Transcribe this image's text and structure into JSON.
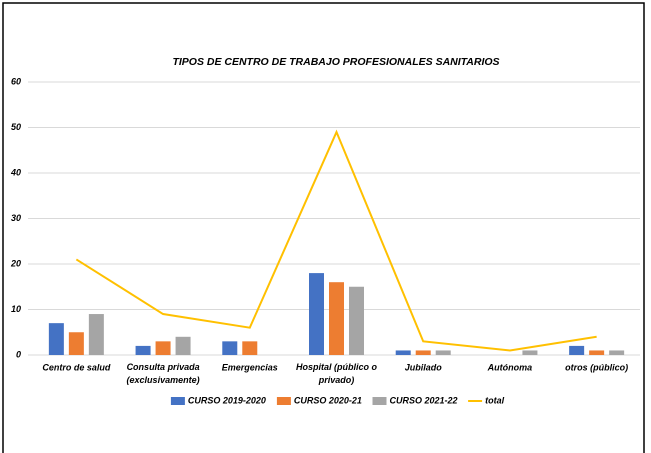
{
  "chart_data": {
    "type": "bar",
    "title": "TIPOS DE CENTRO DE TRABAJO PROFESIONALES SANITARIOS",
    "categories": [
      "Centro de salud",
      "Consulta privada (exclusivamente)",
      "Emergencias",
      "Hospital (público o privado)",
      "Jubilado",
      "Autónoma",
      "otros (público)"
    ],
    "series": [
      {
        "name": "CURSO 2019-2020",
        "color": "#4472c4",
        "values": [
          7,
          2,
          3,
          18,
          1,
          0,
          2
        ]
      },
      {
        "name": "CURSO 2020-21",
        "color": "#ed7d31",
        "values": [
          5,
          3,
          3,
          16,
          1,
          0,
          1
        ]
      },
      {
        "name": "CURSO 2021-22",
        "color": "#a5a5a5",
        "values": [
          9,
          4,
          0,
          15,
          1,
          1,
          1
        ]
      },
      {
        "name": "total",
        "type": "line",
        "color": "#ffc000",
        "values": [
          21,
          9,
          6,
          49,
          3,
          1,
          4
        ]
      }
    ],
    "ylim": [
      0,
      60
    ],
    "yticks": [
      0,
      10,
      20,
      30,
      40,
      50,
      60
    ],
    "grid": true,
    "legend": "bottom"
  }
}
